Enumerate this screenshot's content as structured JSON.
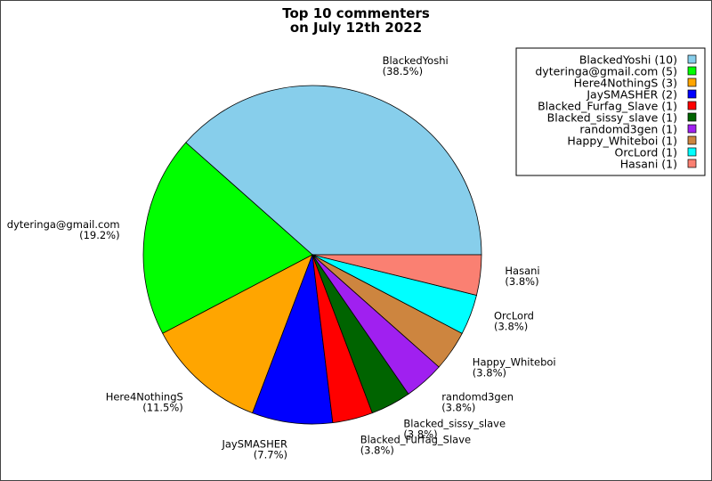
{
  "chart_data": {
    "type": "pie",
    "title": [
      "Top 10 commenters",
      "on July 12th 2022"
    ],
    "slices": [
      {
        "label": "BlackedYoshi",
        "value": 10,
        "percent": "(38.5%)",
        "legend": "BlackedYoshi (10)",
        "color": "#87ceeb"
      },
      {
        "label": "dyteringa@gmail.com",
        "value": 5,
        "percent": "(19.2%)",
        "legend": "dyteringa@gmail.com (5)",
        "color": "#00ff00"
      },
      {
        "label": "Here4NothingS",
        "value": 3,
        "percent": "(11.5%)",
        "legend": "Here4NothingS (3)",
        "color": "#ffa500"
      },
      {
        "label": "JaySMASHER",
        "value": 2,
        "percent": "(7.7%)",
        "legend": "JaySMASHER (2)",
        "color": "#0000ff"
      },
      {
        "label": "Blacked_Furfag_Slave",
        "value": 1,
        "percent": "(3.8%)",
        "legend": "Blacked_Furfag_Slave (1)",
        "color": "#ff0000"
      },
      {
        "label": "Blacked_sissy_slave",
        "value": 1,
        "percent": "(3.8%)",
        "legend": "Blacked_sissy_slave (1)",
        "color": "#006400"
      },
      {
        "label": "randomd3gen",
        "value": 1,
        "percent": "(3.8%)",
        "legend": "randomd3gen (1)",
        "color": "#a020f0"
      },
      {
        "label": "Happy_Whiteboi",
        "value": 1,
        "percent": "(3.8%)",
        "legend": "Happy_Whiteboi (1)",
        "color": "#cd853f"
      },
      {
        "label": "OrcLord",
        "value": 1,
        "percent": "(3.8%)",
        "legend": "OrcLord (1)",
        "color": "#00ffff"
      },
      {
        "label": "Hasani",
        "value": 1,
        "percent": "(3.8%)",
        "legend": "Hasani (1)",
        "color": "#fa8072"
      }
    ],
    "legend_position": "top-right",
    "start_angle": "3 o'clock",
    "direction": "counter-clockwise"
  }
}
